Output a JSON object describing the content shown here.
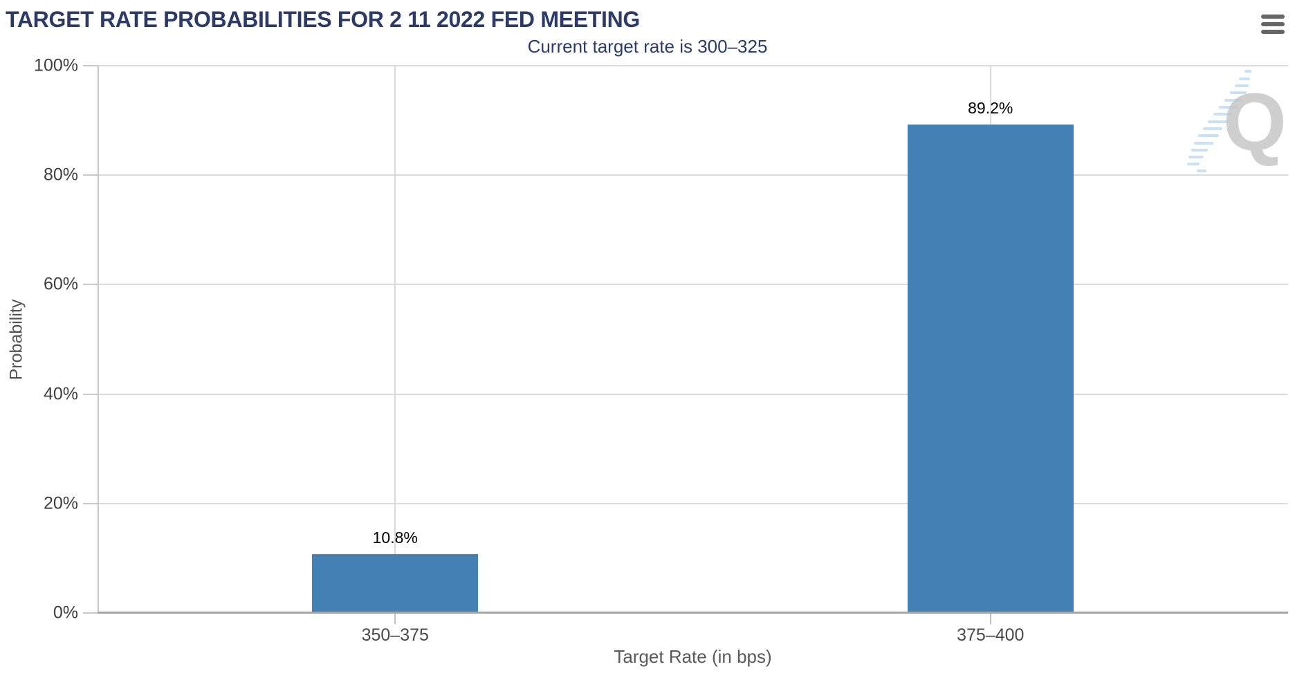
{
  "chart_data": {
    "type": "bar",
    "title": "TARGET RATE PROBABILITIES FOR 2 11 2022 FED MEETING",
    "subtitle": "Current target rate is 300–325",
    "categories": [
      "350–375",
      "375–400"
    ],
    "values": [
      10.8,
      89.2
    ],
    "data_labels": [
      "10.8%",
      "89.2%"
    ],
    "xlabel": "Target Rate (in bps)",
    "ylabel": "Probability",
    "ylim": [
      0,
      100
    ],
    "yticks": [
      0,
      20,
      40,
      60,
      80,
      100
    ],
    "ytick_labels": [
      "0%",
      "20%",
      "40%",
      "60%",
      "80%",
      "100%"
    ],
    "grid": true,
    "legend": "none",
    "bar_color": "#4381B5"
  },
  "menu": {
    "icon": "hamburger-icon"
  },
  "watermark": {
    "letter": "Q"
  },
  "colors": {
    "title": "#2B3A69",
    "subtitle": "#2B3A69",
    "bar": "#4381B5",
    "data_label": "#000000",
    "tick_label": "#3F3F3F",
    "axis_title": "#555555",
    "grid_line": "#DBDBDB",
    "axis_line": "#A5A5A5",
    "menu_icon": "#666666",
    "watermark_gray": "#C7C7C7",
    "watermark_blue": "#BFDCF2"
  }
}
